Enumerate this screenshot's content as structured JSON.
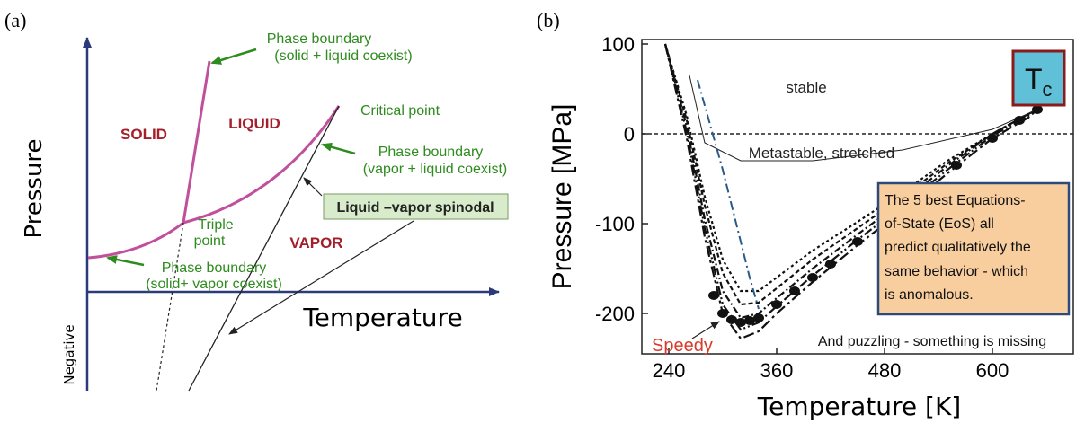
{
  "chart_data": [
    {
      "type": "diagram",
      "panel_label": "(a)",
      "ylabel": "Pressure",
      "xlabel": "Temperature",
      "negative_label": "Negative",
      "regions": [
        "SOLID",
        "LIQUID",
        "VAPOR"
      ],
      "annotations": {
        "solid_liquid": [
          "Phase boundary",
          "(solid + liquid coexist)"
        ],
        "critical_point": "Critical point",
        "vapor_liquid": [
          "Phase boundary",
          "(vapor + liquid coexist)"
        ],
        "spinodal": "Liquid –vapor spinodal",
        "triple_point": [
          "Triple",
          "point"
        ],
        "solid_vapor": [
          "Phase boundary",
          "(solid+ vapor coexist)"
        ]
      },
      "colors": {
        "boundary": "#c0509b",
        "region_text": "#a3202a",
        "annotation": "#2e8b1e",
        "spinodal_box": "#d8eccc"
      }
    },
    {
      "type": "line",
      "panel_label": "(b)",
      "xlabel": "Temperature [K]",
      "ylabel": "Pressure [MPa]",
      "xlim": [
        210,
        690
      ],
      "ylim": [
        -245,
        105
      ],
      "xticks": [
        "240",
        "360",
        "480",
        "600"
      ],
      "yticks": [
        "100",
        "0",
        "-100",
        "-200"
      ],
      "labels": {
        "stable": "stable",
        "metastable": "Metastable, stretched",
        "tc_main": "T",
        "tc_sub": "c",
        "box_lines": [
          "The 5 best Equations-",
          "of-State (EoS) all",
          "predict qualitatively the",
          "same behavior - which",
          "is anomalous."
        ],
        "puzzling": "And puzzling - something is missing",
        "speedy": "Speedy"
      },
      "series": [
        {
          "x": [
            236,
            260,
            280,
            300,
            320,
            340,
            360,
            400,
            450,
            500,
            550,
            600,
            640,
            650
          ],
          "y": [
            100,
            20,
            -70,
            -140,
            -175,
            -175,
            -160,
            -130,
            -98,
            -65,
            -30,
            0,
            22,
            27
          ]
        },
        {
          "x": [
            236,
            260,
            280,
            300,
            320,
            340,
            360,
            400,
            450,
            500,
            550,
            600,
            640,
            650
          ],
          "y": [
            100,
            15,
            -80,
            -155,
            -190,
            -188,
            -172,
            -140,
            -105,
            -70,
            -33,
            0,
            22,
            27
          ]
        },
        {
          "x": [
            236,
            260,
            280,
            300,
            320,
            340,
            360,
            400,
            450,
            500,
            550,
            600,
            640,
            650
          ],
          "y": [
            100,
            8,
            -95,
            -175,
            -205,
            -200,
            -183,
            -150,
            -112,
            -75,
            -36,
            0,
            22,
            27
          ]
        },
        {
          "x": [
            236,
            260,
            280,
            300,
            320,
            340,
            360,
            400,
            450,
            500,
            550,
            600,
            640,
            650
          ],
          "y": [
            100,
            2,
            -105,
            -190,
            -218,
            -210,
            -192,
            -158,
            -118,
            -80,
            -40,
            -2,
            20,
            27
          ]
        },
        {
          "x": [
            236,
            260,
            280,
            300,
            320,
            340,
            360,
            400,
            450,
            500,
            550,
            600,
            640,
            650
          ],
          "y": [
            100,
            -5,
            -115,
            -200,
            -228,
            -220,
            -200,
            -165,
            -124,
            -85,
            -44,
            -5,
            18,
            27
          ]
        }
      ],
      "dots": {
        "x": [
          290,
          300,
          310,
          320,
          330,
          340,
          360,
          380,
          400,
          420,
          450,
          480,
          520,
          560,
          600,
          630,
          650
        ],
        "y": [
          -180,
          -200,
          -207,
          -210,
          -208,
          -205,
          -190,
          -175,
          -160,
          -145,
          -120,
          -97,
          -65,
          -35,
          -5,
          15,
          27
        ]
      },
      "thin_line": {
        "x": [
          263,
          280,
          320,
          400,
          500,
          600,
          650
        ],
        "y": [
          65,
          -10,
          -30,
          -30,
          -18,
          5,
          27
        ]
      },
      "speedy_line": {
        "x": [
          272,
          300,
          330,
          340
        ],
        "y": [
          60,
          -40,
          -160,
          -195
        ]
      },
      "colors": {
        "tc_box": "#5fc0d8",
        "tc_border": "#8b1a1a",
        "eos_box": "#f8ce9e",
        "eos_border": "#2e4a7a",
        "speedy_text": "#d93a2b",
        "speedy_line": "#2a5a8a"
      }
    }
  ]
}
